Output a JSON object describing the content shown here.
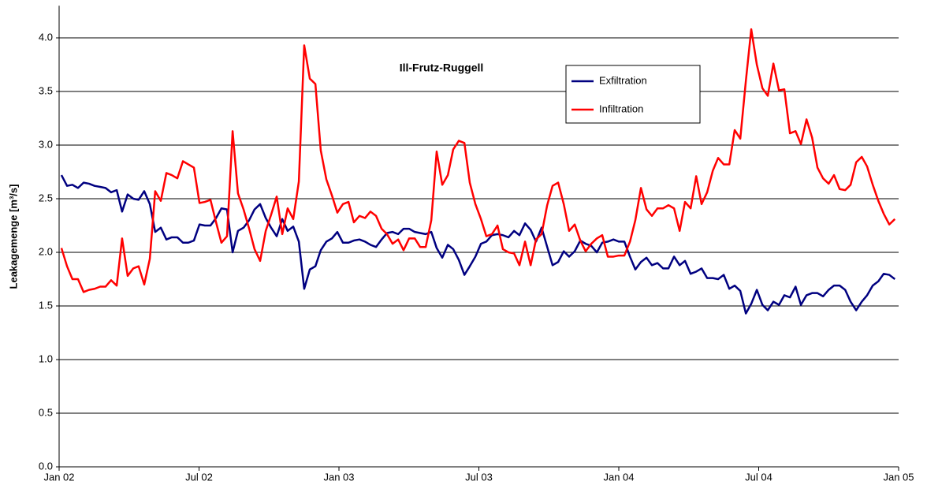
{
  "chart_data": {
    "type": "line",
    "title": "Ill-Frutz-Ruggell",
    "y_label": "Leakagemenge [m³/s]",
    "x": [
      0.1,
      0.34,
      0.57,
      0.81,
      1.05,
      1.28,
      1.52,
      1.76,
      1.99,
      2.23,
      2.47,
      2.7,
      2.94,
      3.18,
      3.41,
      3.65,
      3.89,
      4.12,
      4.36,
      4.6,
      4.83,
      5.07,
      5.31,
      5.54,
      5.78,
      6.02,
      6.25,
      6.49,
      6.73,
      6.96,
      7.2,
      7.44,
      7.67,
      7.91,
      8.15,
      8.38,
      8.62,
      8.86,
      9.09,
      9.33,
      9.57,
      9.8,
      10.04,
      10.28,
      10.51,
      10.75,
      10.99,
      11.22,
      11.46,
      11.7,
      11.93,
      12.17,
      12.41,
      12.64,
      12.88,
      13.12,
      13.35,
      13.59,
      13.83,
      14.06,
      14.3,
      14.54,
      14.77,
      15.01,
      15.25,
      15.48,
      15.72,
      15.96,
      16.19,
      16.43,
      16.67,
      16.9,
      17.14,
      17.38,
      17.61,
      17.85,
      18.09,
      18.32,
      18.56,
      18.8,
      19.03,
      19.27,
      19.51,
      19.74,
      19.98,
      20.22,
      20.45,
      20.69,
      20.93,
      21.16,
      21.4,
      21.64,
      21.87,
      22.11,
      22.35,
      22.58,
      22.82,
      23.06,
      23.29,
      23.53,
      23.77,
      24.0,
      24.24,
      24.48,
      24.71,
      24.95,
      25.19,
      25.42,
      25.66,
      25.9,
      26.13,
      26.37,
      26.61,
      26.84,
      27.08,
      27.32,
      27.55,
      27.79,
      28.03,
      28.26,
      28.5,
      28.74,
      28.97,
      29.21,
      29.45,
      29.68,
      29.92,
      30.16,
      30.39,
      30.63,
      30.87,
      31.1,
      31.34,
      31.58,
      31.81,
      32.05,
      32.29,
      32.52,
      32.76,
      33.0,
      33.23,
      33.47,
      33.71,
      33.94,
      34.18,
      34.42,
      34.65,
      34.89,
      35.13,
      35.36,
      35.6,
      35.84
    ],
    "series": [
      {
        "name": "Exfiltration",
        "color": "#000080",
        "values": [
          2.72,
          2.62,
          2.63,
          2.6,
          2.65,
          2.64,
          2.62,
          2.61,
          2.6,
          2.56,
          2.58,
          2.38,
          2.54,
          2.5,
          2.49,
          2.57,
          2.45,
          2.19,
          2.23,
          2.12,
          2.14,
          2.14,
          2.09,
          2.09,
          2.11,
          2.26,
          2.25,
          2.25,
          2.32,
          2.41,
          2.4,
          2.0,
          2.2,
          2.23,
          2.3,
          2.4,
          2.45,
          2.32,
          2.23,
          2.15,
          2.31,
          2.2,
          2.24,
          2.1,
          1.66,
          1.84,
          1.87,
          2.02,
          2.1,
          2.13,
          2.19,
          2.09,
          2.09,
          2.11,
          2.12,
          2.1,
          2.07,
          2.05,
          2.12,
          2.18,
          2.19,
          2.17,
          2.22,
          2.22,
          2.19,
          2.18,
          2.17,
          2.19,
          2.04,
          1.95,
          2.07,
          2.03,
          1.93,
          1.79,
          1.87,
          1.96,
          2.08,
          2.1,
          2.16,
          2.17,
          2.16,
          2.14,
          2.2,
          2.16,
          2.27,
          2.21,
          2.1,
          2.23,
          2.05,
          1.88,
          1.91,
          2.01,
          1.96,
          2.01,
          2.11,
          2.08,
          2.06,
          2.0,
          2.09,
          2.1,
          2.12,
          2.1,
          2.1,
          1.96,
          1.84,
          1.91,
          1.95,
          1.88,
          1.9,
          1.85,
          1.85,
          1.96,
          1.88,
          1.92,
          1.8,
          1.82,
          1.85,
          1.76,
          1.76,
          1.75,
          1.79,
          1.66,
          1.69,
          1.64,
          1.43,
          1.52,
          1.65,
          1.51,
          1.46,
          1.54,
          1.51,
          1.6,
          1.58,
          1.68,
          1.51,
          1.6,
          1.62,
          1.62,
          1.59,
          1.65,
          1.69,
          1.69,
          1.65,
          1.54,
          1.46,
          1.54,
          1.6,
          1.69,
          1.73,
          1.8,
          1.79,
          1.75
        ]
      },
      {
        "name": "Infiltration",
        "color": "#ff0000",
        "values": [
          2.04,
          1.87,
          1.75,
          1.75,
          1.63,
          1.65,
          1.66,
          1.68,
          1.68,
          1.74,
          1.69,
          2.13,
          1.78,
          1.85,
          1.87,
          1.7,
          1.94,
          2.57,
          2.48,
          2.74,
          2.72,
          2.69,
          2.85,
          2.82,
          2.79,
          2.46,
          2.47,
          2.49,
          2.28,
          2.09,
          2.15,
          3.13,
          2.55,
          2.4,
          2.22,
          2.03,
          1.92,
          2.2,
          2.35,
          2.52,
          2.17,
          2.41,
          2.31,
          2.66,
          3.93,
          3.62,
          3.57,
          2.95,
          2.68,
          2.53,
          2.37,
          2.45,
          2.47,
          2.28,
          2.34,
          2.32,
          2.38,
          2.34,
          2.22,
          2.17,
          2.08,
          2.12,
          2.02,
          2.13,
          2.13,
          2.05,
          2.05,
          2.3,
          2.94,
          2.63,
          2.72,
          2.96,
          3.04,
          3.02,
          2.65,
          2.45,
          2.31,
          2.15,
          2.17,
          2.25,
          2.03,
          2.0,
          1.99,
          1.88,
          2.1,
          1.88,
          2.12,
          2.17,
          2.44,
          2.62,
          2.65,
          2.45,
          2.2,
          2.26,
          2.11,
          2.01,
          2.08,
          2.13,
          2.16,
          1.96,
          1.96,
          1.97,
          1.97,
          2.1,
          2.3,
          2.6,
          2.4,
          2.34,
          2.41,
          2.41,
          2.44,
          2.41,
          2.2,
          2.47,
          2.41,
          2.71,
          2.45,
          2.56,
          2.76,
          2.88,
          2.82,
          2.82,
          3.14,
          3.06,
          3.6,
          4.08,
          3.75,
          3.53,
          3.46,
          3.76,
          3.51,
          3.52,
          3.11,
          3.13,
          3.01,
          3.24,
          3.07,
          2.79,
          2.69,
          2.64,
          2.72,
          2.59,
          2.58,
          2.63,
          2.84,
          2.89,
          2.8,
          2.63,
          2.48,
          2.36,
          2.26,
          2.31
        ]
      }
    ],
    "xlim": [
      0,
      36
    ],
    "xticks": [
      {
        "value": 0,
        "label": "Jan 02"
      },
      {
        "value": 6,
        "label": "Jul 02"
      },
      {
        "value": 12,
        "label": "Jan 03"
      },
      {
        "value": 18,
        "label": "Jul 03"
      },
      {
        "value": 24,
        "label": "Jan 04"
      },
      {
        "value": 30,
        "label": "Jul 04"
      },
      {
        "value": 36,
        "label": "Jan 05"
      }
    ],
    "ylim": [
      0,
      4.3
    ],
    "yticks": [
      {
        "value": 0,
        "label": "0.0"
      },
      0.5,
      {
        "value": 1,
        "label": "1.0"
      },
      1.5,
      {
        "value": 2,
        "label": "2.0"
      },
      2.5,
      {
        "value": 3,
        "label": "3.0"
      },
      3.5,
      {
        "value": 4,
        "label": "4.0"
      }
    ],
    "grid": true,
    "legend": "top"
  }
}
